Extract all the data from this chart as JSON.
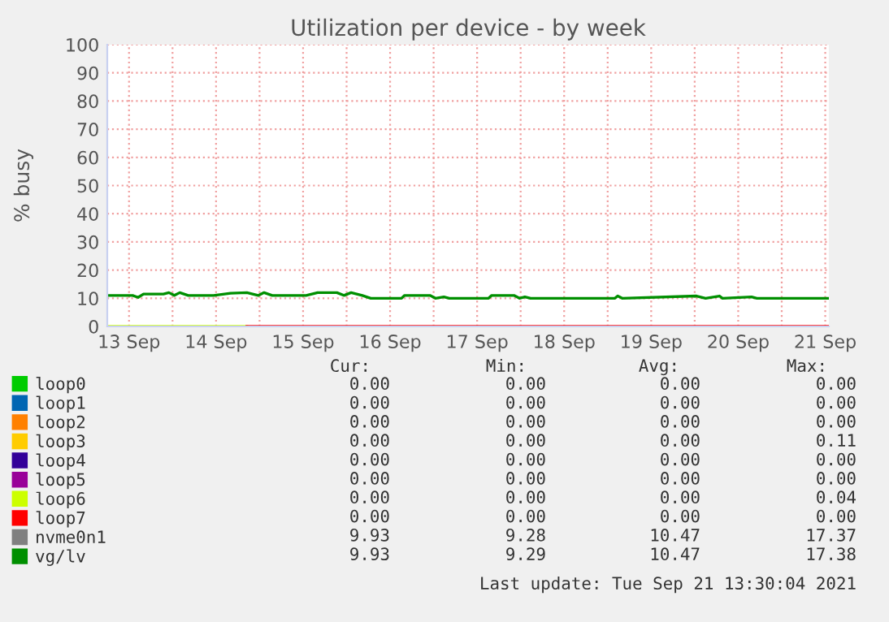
{
  "chart_data": {
    "type": "line",
    "title": "Utilization per device - by week",
    "ylabel": "% busy",
    "xlim": [
      "2021-09-13T06:00",
      "2021-09-21T13:00"
    ],
    "xticks": [
      {
        "value": "2021-09-13T12:00",
        "label": "13 Sep"
      },
      {
        "value": "2021-09-14T00:00",
        "label": null
      },
      {
        "value": "2021-09-14T12:00",
        "label": "14 Sep"
      },
      {
        "value": "2021-09-15T00:00",
        "label": null
      },
      {
        "value": "2021-09-15T12:00",
        "label": "15 Sep"
      },
      {
        "value": "2021-09-16T00:00",
        "label": null
      },
      {
        "value": "2021-09-16T12:00",
        "label": "16 Sep"
      },
      {
        "value": "2021-09-17T00:00",
        "label": null
      },
      {
        "value": "2021-09-17T12:00",
        "label": "17 Sep"
      },
      {
        "value": "2021-09-18T00:00",
        "label": null
      },
      {
        "value": "2021-09-18T12:00",
        "label": "18 Sep"
      },
      {
        "value": "2021-09-19T00:00",
        "label": null
      },
      {
        "value": "2021-09-19T12:00",
        "label": "19 Sep"
      },
      {
        "value": "2021-09-20T00:00",
        "label": null
      },
      {
        "value": "2021-09-20T12:00",
        "label": "20 Sep"
      },
      {
        "value": "2021-09-21T00:00",
        "label": null
      },
      {
        "value": "2021-09-21T12:00",
        "label": "21 Sep"
      }
    ],
    "ylim": [
      0,
      100
    ],
    "yticks": [
      0,
      10,
      20,
      30,
      40,
      50,
      60,
      70,
      80,
      90,
      100
    ],
    "grid": true,
    "legend": "bottom",
    "marker": "none",
    "line_style": "solid",
    "series": [
      {
        "name": "loop0",
        "color": "#00cc00",
        "values": [
          null,
          null
        ]
      },
      {
        "name": "loop1",
        "color": "#0066b3",
        "values": [
          null,
          null
        ]
      },
      {
        "name": "loop2",
        "color": "#ff8000",
        "values": [
          null,
          null
        ]
      },
      {
        "name": "loop3",
        "color": "#ffcc00",
        "values": [
          null,
          null
        ]
      },
      {
        "name": "loop4",
        "color": "#330099",
        "values": [
          null,
          null
        ]
      },
      {
        "name": "loop5",
        "color": "#990099",
        "values": [
          null,
          null
        ]
      },
      {
        "name": "loop6",
        "color": "#ccff00",
        "x": [
          "2021-09-13T06:00",
          "2021-09-14T20:30"
        ],
        "values": [
          0,
          0
        ]
      },
      {
        "name": "loop7",
        "color": "#ff0000",
        "x": [
          "2021-09-14T20:30",
          "2021-09-21T13:00"
        ],
        "values": [
          0,
          0
        ]
      },
      {
        "name": "nvme0n1",
        "color": "#808080",
        "values": [
          null,
          null
        ]
      },
      {
        "name": "vg/lv",
        "color": "#008f00",
        "x": [
          "2021-09-13T06:00",
          "2021-09-13T13:00",
          "2021-09-13T14:30",
          "2021-09-13T16:00",
          "2021-09-13T21:30",
          "2021-09-13T23:00",
          "2021-09-14T00:30",
          "2021-09-14T02:00",
          "2021-09-14T04:20",
          "2021-09-14T11:20",
          "2021-09-14T16:00",
          "2021-09-14T20:30",
          "2021-09-14T23:40",
          "2021-09-15T01:15",
          "2021-09-15T03:30",
          "2021-09-15T12:50",
          "2021-09-15T16:00",
          "2021-09-15T21:20",
          "2021-09-15T23:15",
          "2021-09-16T01:15",
          "2021-09-16T04:20",
          "2021-09-16T06:40",
          "2021-09-16T15:10",
          "2021-09-16T16:00",
          "2021-09-16T23:00",
          "2021-09-17T00:30",
          "2021-09-17T02:50",
          "2021-09-17T04:20",
          "2021-09-17T15:10",
          "2021-09-17T16:00",
          "2021-09-17T22:10",
          "2021-09-17T23:40",
          "2021-09-18T01:10",
          "2021-09-18T02:45",
          "2021-09-19T02:00",
          "2021-09-19T02:45",
          "2021-09-19T04:00",
          "2021-09-20T00:30",
          "2021-09-20T03:00",
          "2021-09-20T06:50",
          "2021-09-20T07:40",
          "2021-09-20T15:40",
          "2021-09-20T17:10",
          "2021-09-21T13:00"
        ],
        "values": [
          11,
          11,
          10.3,
          11.5,
          11.5,
          12,
          11,
          12,
          11,
          11,
          11.8,
          12,
          11,
          12,
          11,
          11,
          12,
          12,
          11,
          12,
          11,
          10,
          10,
          11,
          11,
          10,
          10.5,
          10,
          10,
          11,
          11,
          10,
          10.5,
          10,
          10,
          10.8,
          10,
          10.8,
          10,
          10.8,
          10,
          10.5,
          10,
          10
        ]
      }
    ],
    "annotations": [
      "Cur:",
      "Min:",
      "Avg:",
      "Max:",
      "0.00",
      "0.00",
      "0.00",
      "0.00",
      "0.00",
      "0.00",
      "0.00",
      "0.00",
      "0.00",
      "0.00",
      "0.00",
      "0.00",
      "0.00",
      "0.00",
      "0.00",
      "0.11",
      "0.00",
      "0.00",
      "0.00",
      "0.00",
      "0.00",
      "0.00",
      "0.00",
      "0.00",
      "0.00",
      "0.00",
      "0.00",
      "0.04",
      "0.00",
      "0.00",
      "0.00",
      "0.00",
      "9.93",
      "9.28",
      "10.47",
      "17.37",
      "9.93",
      "9.29",
      "10.47",
      "17.38",
      "Last update: Tue Sep 21 13:30:04 2021"
    ]
  }
}
